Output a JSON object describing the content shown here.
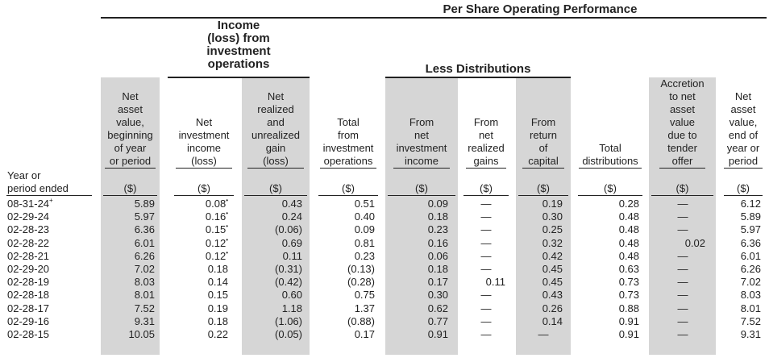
{
  "headers": {
    "top": "Per Share Operating Performance",
    "income_group": "Income\n(loss) from\ninvestment\noperations",
    "distributions_group": "Less Distributions"
  },
  "row_label_header": "Year or\nperiod ended",
  "columns": [
    {
      "key": "nav_begin",
      "label": "Net\nasset\nvalue,\nbeginning\nof year\nor period",
      "unit": "($)"
    },
    {
      "key": "nii",
      "label": "Net\ninvestment\nincome\n(loss)",
      "unit": "($)"
    },
    {
      "key": "realized",
      "label": "Net\nrealized\nand\nunrealized\ngain\n(loss)",
      "unit": "($)"
    },
    {
      "key": "total_ops",
      "label": "Total\nfrom\ninvestment\noperations",
      "unit": "($)"
    },
    {
      "key": "from_nii",
      "label": "From\nnet\ninvestment\nincome",
      "unit": "($)"
    },
    {
      "key": "from_gains",
      "label": "From\nnet\nrealized\ngains",
      "unit": "($)"
    },
    {
      "key": "from_capital",
      "label": "From\nreturn\nof\ncapital",
      "unit": "($)"
    },
    {
      "key": "total_dist",
      "label": "Total\ndistributions",
      "unit": "($)"
    },
    {
      "key": "accretion",
      "label": "Accretion\nto net\nasset\nvalue\ndue to\ntender\noffer",
      "unit": "($)"
    },
    {
      "key": "nav_end",
      "label": "Net\nasset\nvalue,\nend of\nyear or\nperiod",
      "unit": "($)"
    }
  ],
  "rows": [
    {
      "year": "08-31-24",
      "mark": "+",
      "values": [
        "5.89",
        "0.08",
        "0.43",
        "0.51",
        "0.09",
        "—",
        "0.19",
        "0.28",
        "—",
        "6.12"
      ],
      "nii_mark": "•"
    },
    {
      "year": "02-29-24",
      "mark": "",
      "values": [
        "5.97",
        "0.16",
        "0.24",
        "0.40",
        "0.18",
        "—",
        "0.30",
        "0.48",
        "—",
        "5.89"
      ],
      "nii_mark": "•"
    },
    {
      "year": "02-28-23",
      "mark": "",
      "values": [
        "6.36",
        "0.15",
        "(0.06)",
        "0.09",
        "0.23",
        "—",
        "0.25",
        "0.48",
        "—",
        "5.97"
      ],
      "nii_mark": "•"
    },
    {
      "year": "02-28-22",
      "mark": "",
      "values": [
        "6.01",
        "0.12",
        "0.69",
        "0.81",
        "0.16",
        "—",
        "0.32",
        "0.48",
        "0.02",
        "6.36"
      ],
      "nii_mark": "•"
    },
    {
      "year": "02-28-21",
      "mark": "",
      "values": [
        "6.26",
        "0.12",
        "0.11",
        "0.23",
        "0.06",
        "—",
        "0.42",
        "0.48",
        "—",
        "6.01"
      ],
      "nii_mark": "•"
    },
    {
      "year": "02-29-20",
      "mark": "",
      "values": [
        "7.02",
        "0.18",
        "(0.31)",
        "(0.13)",
        "0.18",
        "—",
        "0.45",
        "0.63",
        "—",
        "6.26"
      ],
      "nii_mark": ""
    },
    {
      "year": "02-28-19",
      "mark": "",
      "values": [
        "8.03",
        "0.14",
        "(0.42)",
        "(0.28)",
        "0.17",
        "0.11",
        "0.45",
        "0.73",
        "—",
        "7.02"
      ],
      "nii_mark": ""
    },
    {
      "year": "02-28-18",
      "mark": "",
      "values": [
        "8.01",
        "0.15",
        "0.60",
        "0.75",
        "0.30",
        "—",
        "0.43",
        "0.73",
        "—",
        "8.03"
      ],
      "nii_mark": ""
    },
    {
      "year": "02-28-17",
      "mark": "",
      "values": [
        "7.52",
        "0.19",
        "1.18",
        "1.37",
        "0.62",
        "—",
        "0.26",
        "0.88",
        "—",
        "8.01"
      ],
      "nii_mark": ""
    },
    {
      "year": "02-29-16",
      "mark": "",
      "values": [
        "9.31",
        "0.18",
        "(1.06)",
        "(0.88)",
        "0.77",
        "—",
        "0.14",
        "0.91",
        "—",
        "7.52"
      ],
      "nii_mark": ""
    },
    {
      "year": "02-28-15",
      "mark": "",
      "values": [
        "10.05",
        "0.22",
        "(0.05)",
        "0.17",
        "0.91",
        "—",
        "—",
        "0.91",
        "—",
        "9.31"
      ],
      "nii_mark": ""
    }
  ]
}
